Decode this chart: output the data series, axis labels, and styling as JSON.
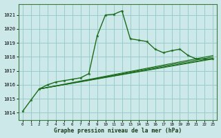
{
  "xlabel": "Graphe pression niveau de la mer (hPa)",
  "xlim": [
    -0.5,
    23.5
  ],
  "ylim": [
    1013.5,
    1021.8
  ],
  "yticks": [
    1014,
    1015,
    1016,
    1017,
    1018,
    1019,
    1020,
    1021
  ],
  "xticks": [
    0,
    1,
    2,
    3,
    4,
    5,
    6,
    7,
    8,
    9,
    10,
    11,
    12,
    13,
    14,
    15,
    16,
    17,
    18,
    19,
    20,
    21,
    22,
    23
  ],
  "background_color": "#cce8e8",
  "grid_color": "#99cccc",
  "line_color": "#1a6b1a",
  "main_series": {
    "x": [
      0,
      1,
      2,
      3,
      4,
      5,
      6,
      7,
      8,
      9,
      10,
      11,
      12,
      13,
      14,
      15,
      16,
      17,
      18,
      19,
      20,
      21,
      22,
      23
    ],
    "y": [
      1014.1,
      1014.9,
      1015.7,
      1016.0,
      1016.2,
      1016.3,
      1016.4,
      1016.5,
      1016.8,
      1019.5,
      1021.0,
      1021.05,
      1021.3,
      1019.3,
      1019.2,
      1019.1,
      1018.55,
      1018.3,
      1018.45,
      1018.55,
      1018.1,
      1017.85,
      1017.85,
      1017.85
    ]
  },
  "straight_lines": [
    {
      "x0": 2,
      "y0": 1015.7,
      "x1": 23,
      "y1": 1017.85
    },
    {
      "x0": 2,
      "y0": 1015.7,
      "x1": 23,
      "y1": 1017.9
    },
    {
      "x0": 2,
      "y0": 1015.7,
      "x1": 23,
      "y1": 1018.0
    },
    {
      "x0": 2,
      "y0": 1015.7,
      "x1": 23,
      "y1": 1018.1
    }
  ]
}
